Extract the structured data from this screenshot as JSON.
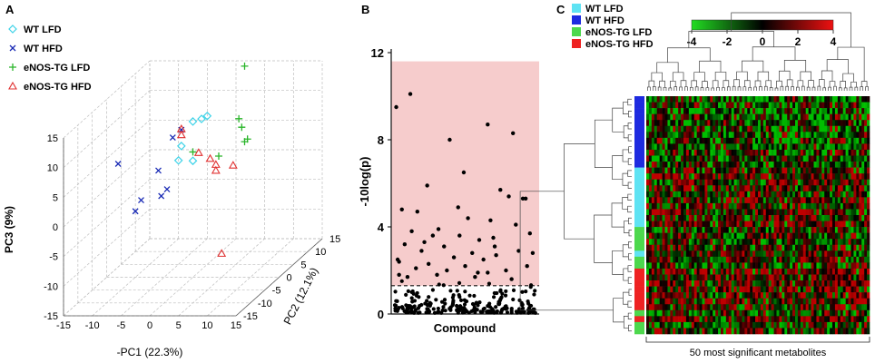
{
  "panels": {
    "a_label": "A",
    "b_label": "B",
    "c_label": "C"
  },
  "chart_data": [
    {
      "type": "scatter",
      "panel": "A",
      "title": "",
      "xlabel": "-PC1 (22.3%)",
      "ylabel": "PC2 (12.1%)",
      "zlabel": "PC3 (9%)",
      "xticks": [
        "-15",
        "-10",
        "-5",
        "0",
        "5",
        "10",
        "15"
      ],
      "yticks": [
        "-15",
        "-10",
        "-5",
        "0",
        "5",
        "10",
        "15"
      ],
      "zticks": [
        "-15",
        "-10",
        "-5",
        "0",
        "5",
        "10",
        "15"
      ],
      "xlim": [
        -15,
        15
      ],
      "ylim": [
        -15,
        15
      ],
      "zlim": [
        -15,
        15
      ],
      "legend_position": "top-left",
      "series": [
        {
          "name": "WT LFD",
          "marker": "diamond",
          "color": "#3fd3e8",
          "points": [
            [
              2,
              -4,
              13
            ],
            [
              3,
              -3,
              13
            ],
            [
              4,
              -3,
              13.5
            ],
            [
              -1,
              -2,
              8
            ],
            [
              -1,
              -3,
              6
            ],
            [
              1,
              -2,
              5.5
            ]
          ]
        },
        {
          "name": "WT HFD",
          "marker": "x",
          "color": "#1a2bb5",
          "points": [
            [
              -12,
              -2,
              5
            ],
            [
              -9,
              0,
              -2
            ],
            [
              -9,
              -2,
              -3
            ],
            [
              -6,
              0,
              3
            ],
            [
              -4,
              -3,
              0
            ],
            [
              -3,
              -1,
              9
            ],
            [
              -3,
              2,
              9
            ],
            [
              -2,
              -5,
              2
            ]
          ]
        },
        {
          "name": "eNOS-TG LFD",
          "marker": "plus",
          "color": "#2ab52a",
          "points": [
            [
              6,
              6,
              18
            ],
            [
              6,
              4,
              10
            ],
            [
              7,
              3,
              9
            ],
            [
              8,
              2,
              7
            ],
            [
              8,
              3,
              7
            ],
            [
              4,
              1,
              5
            ],
            [
              1,
              -2,
              7
            ]
          ]
        },
        {
          "name": "eNOS-TG HFD",
          "marker": "triangle",
          "color": "#e03030",
          "points": [
            [
              -2,
              0,
              10
            ],
            [
              -2,
              0,
              9
            ],
            [
              1,
              0,
              6
            ],
            [
              3,
              0,
              5
            ],
            [
              4,
              0,
              4
            ],
            [
              4,
              0,
              3
            ],
            [
              6,
              2,
              3
            ],
            [
              5,
              0,
              -11
            ]
          ]
        }
      ]
    },
    {
      "type": "scatter",
      "panel": "B",
      "title": "",
      "xlabel": "Compound",
      "ylabel": "-10log(p)",
      "yticks": [
        "0",
        "4",
        "8",
        "12"
      ],
      "ylim": [
        0,
        12
      ],
      "shaded_region": [
        1.3,
        11.6
      ],
      "threshold": 1.3,
      "shade_color": "#f6cccc",
      "point_color": "#000000",
      "points": [
        [
          0.01,
          9.5
        ],
        [
          0.02,
          2.5
        ],
        [
          0.03,
          2.4
        ],
        [
          0.05,
          4.8
        ],
        [
          0.03,
          1.8
        ],
        [
          0.11,
          10.1
        ],
        [
          0.23,
          5.9
        ],
        [
          0.16,
          4.7
        ],
        [
          0.39,
          8.0
        ],
        [
          0.49,
          6.5
        ],
        [
          0.59,
          1.9
        ],
        [
          0.66,
          8.7
        ],
        [
          0.71,
          3.1
        ],
        [
          0.75,
          5.7
        ],
        [
          0.81,
          5.4
        ],
        [
          0.84,
          8.3
        ],
        [
          0.91,
          5.3
        ],
        [
          0.93,
          5.3
        ],
        [
          0.96,
          3.7
        ],
        [
          0.98,
          2.8
        ],
        [
          0.45,
          4.9
        ],
        [
          0.52,
          4.4
        ],
        [
          0.31,
          3.9
        ],
        [
          0.68,
          4.3
        ],
        [
          0.27,
          3.6
        ],
        [
          0.6,
          3.4
        ],
        [
          0.12,
          3.8
        ],
        [
          0.86,
          4.1
        ],
        [
          0.19,
          2.9
        ],
        [
          0.35,
          3.1
        ],
        [
          0.55,
          2.8
        ],
        [
          0.72,
          2.7
        ],
        [
          0.07,
          3.2
        ],
        [
          0.42,
          2.6
        ],
        [
          0.63,
          2.5
        ],
        [
          0.88,
          2.9
        ],
        [
          0.24,
          2.3
        ],
        [
          0.5,
          2.2
        ],
        [
          0.79,
          2.0
        ],
        [
          0.15,
          2.1
        ],
        [
          0.37,
          2.0
        ],
        [
          0.66,
          1.9
        ],
        [
          0.94,
          2.2
        ],
        [
          0.09,
          1.7
        ],
        [
          0.3,
          1.8
        ],
        [
          0.57,
          1.7
        ],
        [
          0.83,
          1.6
        ],
        [
          0.46,
          3.6
        ],
        [
          0.21,
          3.3
        ],
        [
          0.7,
          3.5
        ]
      ]
    },
    {
      "type": "heatmap",
      "panel": "C",
      "title": "",
      "xlabel": "50 most significant metabolites",
      "legend": [
        {
          "name": "WT LFD",
          "color": "#5fe3f3"
        },
        {
          "name": "WT HFD",
          "color": "#1e2be0"
        },
        {
          "name": "eNOS-TG LFD",
          "color": "#4dd84d"
        },
        {
          "name": "eNOS-TG HFD",
          "color": "#ee2222"
        }
      ],
      "colorbar_ticks": [
        "-4",
        "-2",
        "0",
        "2",
        "4"
      ],
      "colorbar_range": [
        -4,
        4
      ],
      "row_groups": [
        "WT HFD",
        "WT HFD",
        "WT HFD",
        "WT HFD",
        "WT HFD",
        "WT HFD",
        "WT HFD",
        "WT HFD",
        "WT HFD",
        "WT HFD",
        "WT HFD",
        "WT HFD",
        "WT LFD",
        "WT LFD",
        "WT LFD",
        "WT LFD",
        "WT LFD",
        "WT LFD",
        "WT LFD",
        "WT LFD",
        "WT LFD",
        "WT LFD",
        "eNOS-TG LFD",
        "eNOS-TG LFD",
        "eNOS-TG LFD",
        "eNOS-TG LFD",
        "WT LFD",
        "eNOS-TG LFD",
        "eNOS-TG LFD",
        "eNOS-TG HFD",
        "eNOS-TG HFD",
        "eNOS-TG HFD",
        "eNOS-TG HFD",
        "eNOS-TG HFD",
        "eNOS-TG HFD",
        "eNOS-TG HFD",
        "eNOS-TG LFD",
        "eNOS-TG HFD",
        "eNOS-TG LFD",
        "eNOS-TG LFD"
      ],
      "n_columns": 50
    }
  ]
}
